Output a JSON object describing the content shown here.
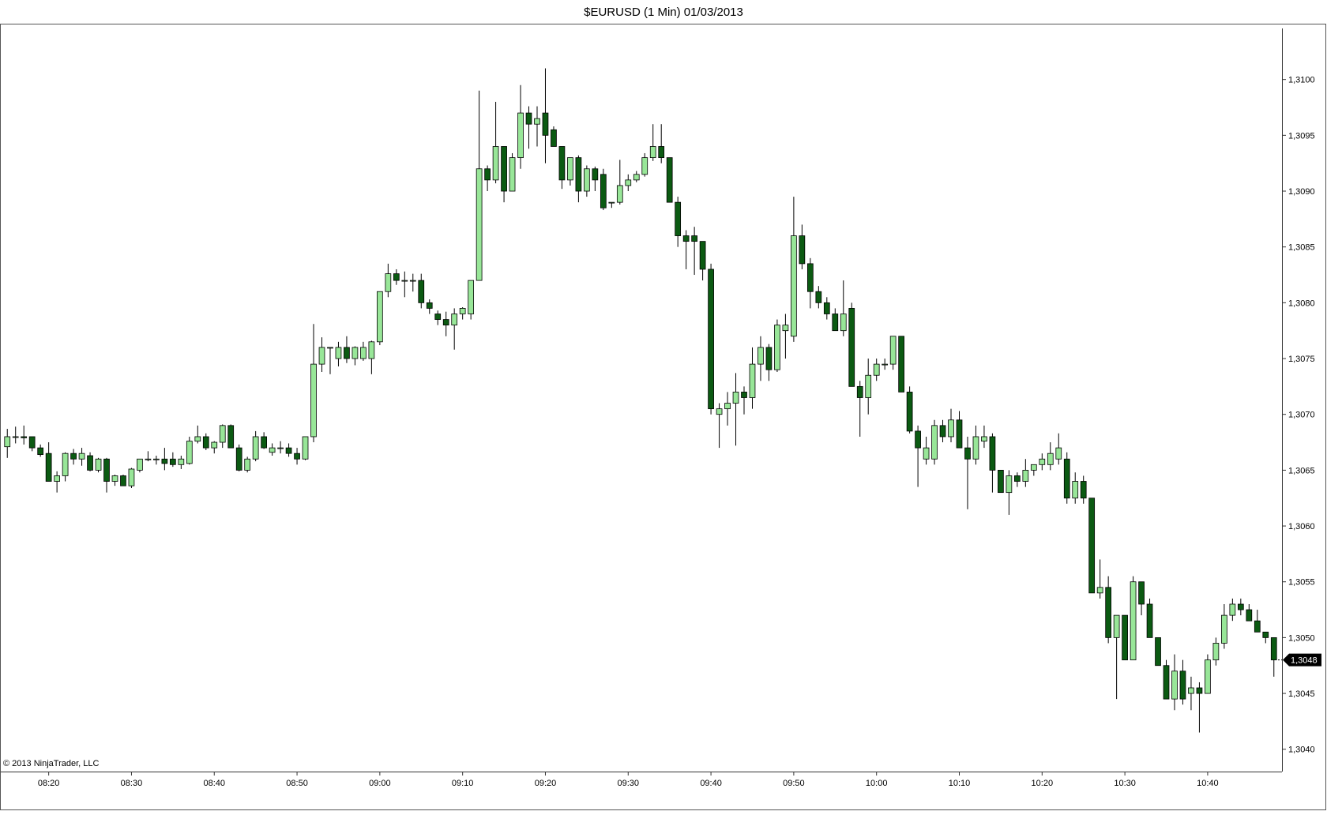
{
  "chart_data": {
    "type": "candlestick",
    "title": "$EURUSD (1 Min)  01/03/2013",
    "footer": "© 2013 NinjaTrader, LLC",
    "up_color": "#98e698",
    "down_color": "#0b5a12",
    "ylim": [
      1.3038,
      1.3105
    ],
    "yticks": [
      {
        "value": 1.304,
        "label": "1,3040"
      },
      {
        "value": 1.3045,
        "label": "1,3045"
      },
      {
        "value": 1.305,
        "label": "1,3050"
      },
      {
        "value": 1.3055,
        "label": "1,3055"
      },
      {
        "value": 1.306,
        "label": "1,3060"
      },
      {
        "value": 1.3065,
        "label": "1,3065"
      },
      {
        "value": 1.307,
        "label": "1,3070"
      },
      {
        "value": 1.3075,
        "label": "1,3075"
      },
      {
        "value": 1.308,
        "label": "1,3080"
      },
      {
        "value": 1.3085,
        "label": "1,3085"
      },
      {
        "value": 1.309,
        "label": "1,3090"
      },
      {
        "value": 1.3095,
        "label": "1,3095"
      },
      {
        "value": 1.31,
        "label": "1,3100"
      }
    ],
    "last_price": {
      "value": 1.3048,
      "label": "1,3048"
    },
    "categories": [
      null,
      null,
      null,
      null,
      null,
      "08:20",
      null,
      null,
      null,
      null,
      null,
      null,
      null,
      null,
      null,
      "08:30",
      null,
      null,
      null,
      null,
      null,
      null,
      null,
      null,
      null,
      "08:40",
      null,
      null,
      null,
      null,
      null,
      null,
      null,
      null,
      null,
      "08:50",
      null,
      null,
      null,
      null,
      null,
      null,
      null,
      null,
      null,
      "09:00",
      null,
      null,
      null,
      null,
      null,
      null,
      null,
      null,
      null,
      "09:10",
      null,
      null,
      null,
      null,
      null,
      null,
      null,
      null,
      null,
      "09:20",
      null,
      null,
      null,
      null,
      null,
      null,
      null,
      null,
      null,
      "09:30",
      null,
      null,
      null,
      null,
      null,
      null,
      null,
      null,
      null,
      "09:40",
      null,
      null,
      null,
      null,
      null,
      null,
      null,
      null,
      null,
      "09:50",
      null,
      null,
      null,
      null,
      null,
      null,
      null,
      null,
      null,
      "10:00",
      null,
      null,
      null,
      null,
      null,
      null,
      null,
      null,
      null,
      "10:10",
      null,
      null,
      null,
      null,
      null,
      null,
      null,
      null,
      null,
      "10:20",
      null,
      null,
      null,
      null,
      null,
      null,
      null,
      null,
      null,
      "10:30",
      null,
      null,
      null,
      null,
      null,
      null,
      null,
      null,
      null,
      "10:40",
      null,
      null,
      null,
      null,
      null,
      null,
      null,
      null
    ],
    "ohlc": [
      [
        1.30671,
        1.30687,
        1.30661,
        1.3068
      ],
      [
        1.3068,
        1.30689,
        1.30674,
        1.3068
      ],
      [
        1.3068,
        1.3069,
        1.30673,
        1.30679
      ],
      [
        1.3068,
        1.3068,
        1.30667,
        1.3067
      ],
      [
        1.3067,
        1.30673,
        1.30662,
        1.30664
      ],
      [
        1.30665,
        1.30675,
        1.3064,
        1.3064
      ],
      [
        1.3064,
        1.30649,
        1.3063,
        1.30645
      ],
      [
        1.30645,
        1.30666,
        1.3064,
        1.30665
      ],
      [
        1.30665,
        1.30669,
        1.30655,
        1.3066
      ],
      [
        1.3066,
        1.3067,
        1.30654,
        1.30665
      ],
      [
        1.30663,
        1.30666,
        1.30649,
        1.3065
      ],
      [
        1.3065,
        1.30661,
        1.30648,
        1.3066
      ],
      [
        1.3066,
        1.30661,
        1.3063,
        1.3064
      ],
      [
        1.3064,
        1.30646,
        1.30636,
        1.30645
      ],
      [
        1.30645,
        1.30646,
        1.30636,
        1.30636
      ],
      [
        1.30636,
        1.30652,
        1.30634,
        1.30651
      ],
      [
        1.3065,
        1.3066,
        1.30648,
        1.3066
      ],
      [
        1.3066,
        1.30667,
        1.30658,
        1.3066
      ],
      [
        1.3066,
        1.30663,
        1.30655,
        1.3066
      ],
      [
        1.3066,
        1.3067,
        1.3065,
        1.30656
      ],
      [
        1.3066,
        1.30666,
        1.30653,
        1.30655
      ],
      [
        1.30655,
        1.30663,
        1.30651,
        1.3066
      ],
      [
        1.30656,
        1.3068,
        1.30655,
        1.30676
      ],
      [
        1.30676,
        1.3069,
        1.30674,
        1.3068
      ],
      [
        1.3068,
        1.30683,
        1.30668,
        1.3067
      ],
      [
        1.3067,
        1.30676,
        1.30665,
        1.30675
      ],
      [
        1.30675,
        1.30691,
        1.3067,
        1.3069
      ],
      [
        1.3069,
        1.30691,
        1.3067,
        1.3067
      ],
      [
        1.3067,
        1.30673,
        1.30649,
        1.3065
      ],
      [
        1.3065,
        1.30662,
        1.30648,
        1.3066
      ],
      [
        1.3066,
        1.30685,
        1.30658,
        1.3068
      ],
      [
        1.3068,
        1.30684,
        1.30669,
        1.3067
      ],
      [
        1.30666,
        1.30674,
        1.30663,
        1.3067
      ],
      [
        1.3067,
        1.30676,
        1.30665,
        1.3067
      ],
      [
        1.3067,
        1.30674,
        1.30662,
        1.30665
      ],
      [
        1.30665,
        1.3067,
        1.30655,
        1.3066
      ],
      [
        1.3066,
        1.3068,
        1.30659,
        1.3068
      ],
      [
        1.3068,
        1.30781,
        1.30675,
        1.30745
      ],
      [
        1.30745,
        1.30769,
        1.30738,
        1.3076
      ],
      [
        1.3076,
        1.3076,
        1.30736,
        1.3076
      ],
      [
        1.3075,
        1.30765,
        1.30743,
        1.3076
      ],
      [
        1.3076,
        1.3077,
        1.30746,
        1.3075
      ],
      [
        1.3075,
        1.30761,
        1.30744,
        1.3076
      ],
      [
        1.3075,
        1.30765,
        1.30748,
        1.3076
      ],
      [
        1.3075,
        1.30766,
        1.30736,
        1.30765
      ],
      [
        1.30765,
        1.3081,
        1.30762,
        1.3081
      ],
      [
        1.3081,
        1.30835,
        1.30805,
        1.30826
      ],
      [
        1.30826,
        1.3083,
        1.30816,
        1.3082
      ],
      [
        1.3082,
        1.30828,
        1.30805,
        1.3082
      ],
      [
        1.3082,
        1.30826,
        1.3081,
        1.3082
      ],
      [
        1.3082,
        1.30826,
        1.30795,
        1.308
      ],
      [
        1.308,
        1.30803,
        1.3079,
        1.30795
      ],
      [
        1.3079,
        1.30793,
        1.3078,
        1.30785
      ],
      [
        1.30785,
        1.30792,
        1.3077,
        1.3078
      ],
      [
        1.3078,
        1.30795,
        1.30758,
        1.3079
      ],
      [
        1.3079,
        1.30796,
        1.30785,
        1.30795
      ],
      [
        1.3079,
        1.3082,
        1.30785,
        1.3082
      ],
      [
        1.3082,
        1.3099,
        1.3082,
        1.3092
      ],
      [
        1.3092,
        1.30923,
        1.309,
        1.3091
      ],
      [
        1.3091,
        1.3098,
        1.30907,
        1.3094
      ],
      [
        1.3094,
        1.3094,
        1.3089,
        1.309
      ],
      [
        1.309,
        1.30934,
        1.309,
        1.3093
      ],
      [
        1.3093,
        1.30995,
        1.3092,
        1.3097
      ],
      [
        1.3097,
        1.30976,
        1.30938,
        1.3096
      ],
      [
        1.3096,
        1.30976,
        1.3094,
        1.30965
      ],
      [
        1.3097,
        1.3101,
        1.30925,
        1.3095
      ],
      [
        1.30955,
        1.30958,
        1.3094,
        1.3094
      ],
      [
        1.3094,
        1.3094,
        1.30902,
        1.3091
      ],
      [
        1.3091,
        1.3093,
        1.30905,
        1.3093
      ],
      [
        1.3093,
        1.30932,
        1.3089,
        1.309
      ],
      [
        1.309,
        1.30923,
        1.30895,
        1.3092
      ],
      [
        1.3092,
        1.30922,
        1.309,
        1.3091
      ],
      [
        1.30915,
        1.3092,
        1.30883,
        1.30885
      ],
      [
        1.3089,
        1.3089,
        1.30885,
        1.3089
      ],
      [
        1.3089,
        1.30928,
        1.30888,
        1.30905
      ],
      [
        1.30905,
        1.30915,
        1.309,
        1.3091
      ],
      [
        1.3091,
        1.30918,
        1.30908,
        1.30915
      ],
      [
        1.30915,
        1.30934,
        1.30913,
        1.3093
      ],
      [
        1.3093,
        1.3096,
        1.30927,
        1.3094
      ],
      [
        1.3094,
        1.3096,
        1.30925,
        1.3093
      ],
      [
        1.3093,
        1.3093,
        1.3089,
        1.3089
      ],
      [
        1.3089,
        1.30895,
        1.3085,
        1.3086
      ],
      [
        1.3086,
        1.30865,
        1.3083,
        1.30855
      ],
      [
        1.3086,
        1.30868,
        1.30825,
        1.30855
      ],
      [
        1.30855,
        1.30855,
        1.3082,
        1.3083
      ],
      [
        1.3083,
        1.30835,
        1.307,
        1.30705
      ],
      [
        1.307,
        1.3071,
        1.3067,
        1.30705
      ],
      [
        1.30705,
        1.3072,
        1.3069,
        1.3071
      ],
      [
        1.3071,
        1.30737,
        1.30672,
        1.3072
      ],
      [
        1.3072,
        1.30725,
        1.307,
        1.30715
      ],
      [
        1.30715,
        1.3076,
        1.30705,
        1.30745
      ],
      [
        1.30745,
        1.3077,
        1.3073,
        1.3076
      ],
      [
        1.3076,
        1.30763,
        1.3073,
        1.3074
      ],
      [
        1.3074,
        1.30785,
        1.30738,
        1.3078
      ],
      [
        1.30775,
        1.3079,
        1.3075,
        1.3078
      ],
      [
        1.3077,
        1.30895,
        1.30765,
        1.3086
      ],
      [
        1.3086,
        1.3087,
        1.3083,
        1.30835
      ],
      [
        1.30835,
        1.3084,
        1.30795,
        1.3081
      ],
      [
        1.3081,
        1.30815,
        1.30795,
        1.308
      ],
      [
        1.308,
        1.30805,
        1.30785,
        1.3079
      ],
      [
        1.3079,
        1.30795,
        1.30775,
        1.30775
      ],
      [
        1.30775,
        1.3082,
        1.3077,
        1.3079
      ],
      [
        1.30795,
        1.308,
        1.30725,
        1.30725
      ],
      [
        1.30725,
        1.3073,
        1.3068,
        1.30715
      ],
      [
        1.30715,
        1.3075,
        1.307,
        1.30735
      ],
      [
        1.30735,
        1.3075,
        1.3073,
        1.30745
      ],
      [
        1.30745,
        1.3075,
        1.3074,
        1.30745
      ],
      [
        1.30745,
        1.3077,
        1.3074,
        1.3077
      ],
      [
        1.3077,
        1.3077,
        1.3072,
        1.3072
      ],
      [
        1.3072,
        1.30725,
        1.30683,
        1.30685
      ],
      [
        1.30685,
        1.3069,
        1.30635,
        1.3067
      ],
      [
        1.3066,
        1.3068,
        1.30655,
        1.3067
      ],
      [
        1.3066,
        1.30695,
        1.30655,
        1.3069
      ],
      [
        1.3069,
        1.30695,
        1.30675,
        1.3068
      ],
      [
        1.3068,
        1.30705,
        1.30675,
        1.30695
      ],
      [
        1.30695,
        1.30703,
        1.3067,
        1.3067
      ],
      [
        1.3067,
        1.3068,
        1.30615,
        1.3066
      ],
      [
        1.3066,
        1.3069,
        1.30655,
        1.3068
      ],
      [
        1.30676,
        1.3069,
        1.3067,
        1.3068
      ],
      [
        1.3068,
        1.30683,
        1.3063,
        1.3065
      ],
      [
        1.3065,
        1.3065,
        1.3063,
        1.3063
      ],
      [
        1.3063,
        1.3065,
        1.3061,
        1.30645
      ],
      [
        1.30645,
        1.30648,
        1.30635,
        1.3064
      ],
      [
        1.3064,
        1.3066,
        1.30635,
        1.3065
      ],
      [
        1.3065,
        1.30655,
        1.30645,
        1.30655
      ],
      [
        1.30655,
        1.30665,
        1.3065,
        1.3066
      ],
      [
        1.30655,
        1.30675,
        1.3065,
        1.30665
      ],
      [
        1.3066,
        1.30683,
        1.30655,
        1.3067
      ],
      [
        1.3066,
        1.30666,
        1.3062,
        1.30625
      ],
      [
        1.30625,
        1.30648,
        1.3062,
        1.3064
      ],
      [
        1.3064,
        1.30645,
        1.3062,
        1.30625
      ],
      [
        1.30625,
        1.30625,
        1.3054,
        1.3054
      ],
      [
        1.3054,
        1.3057,
        1.30535,
        1.30545
      ],
      [
        1.30545,
        1.30555,
        1.30495,
        1.305
      ],
      [
        1.305,
        1.3052,
        1.30445,
        1.3052
      ],
      [
        1.3052,
        1.3052,
        1.3048,
        1.3048
      ],
      [
        1.3048,
        1.30555,
        1.3048,
        1.3055
      ],
      [
        1.3055,
        1.3055,
        1.3052,
        1.3053
      ],
      [
        1.3053,
        1.30535,
        1.305,
        1.305
      ],
      [
        1.305,
        1.305,
        1.30475,
        1.30475
      ],
      [
        1.30475,
        1.3048,
        1.30445,
        1.30445
      ],
      [
        1.30445,
        1.30485,
        1.30435,
        1.3047
      ],
      [
        1.3047,
        1.3048,
        1.3044,
        1.30445
      ],
      [
        1.3045,
        1.30465,
        1.30435,
        1.30455
      ],
      [
        1.30455,
        1.3046,
        1.30415,
        1.3045
      ],
      [
        1.3045,
        1.30485,
        1.3045,
        1.3048
      ],
      [
        1.3048,
        1.305,
        1.30475,
        1.30495
      ],
      [
        1.30495,
        1.3053,
        1.3049,
        1.3052
      ],
      [
        1.3052,
        1.30535,
        1.30515,
        1.3053
      ],
      [
        1.3053,
        1.30535,
        1.3052,
        1.30525
      ],
      [
        1.30525,
        1.3053,
        1.30515,
        1.30515
      ],
      [
        1.30515,
        1.30525,
        1.30505,
        1.30505
      ],
      [
        1.30505,
        1.30505,
        1.30495,
        1.305
      ],
      [
        1.305,
        1.305,
        1.30465,
        1.3048
      ]
    ]
  }
}
